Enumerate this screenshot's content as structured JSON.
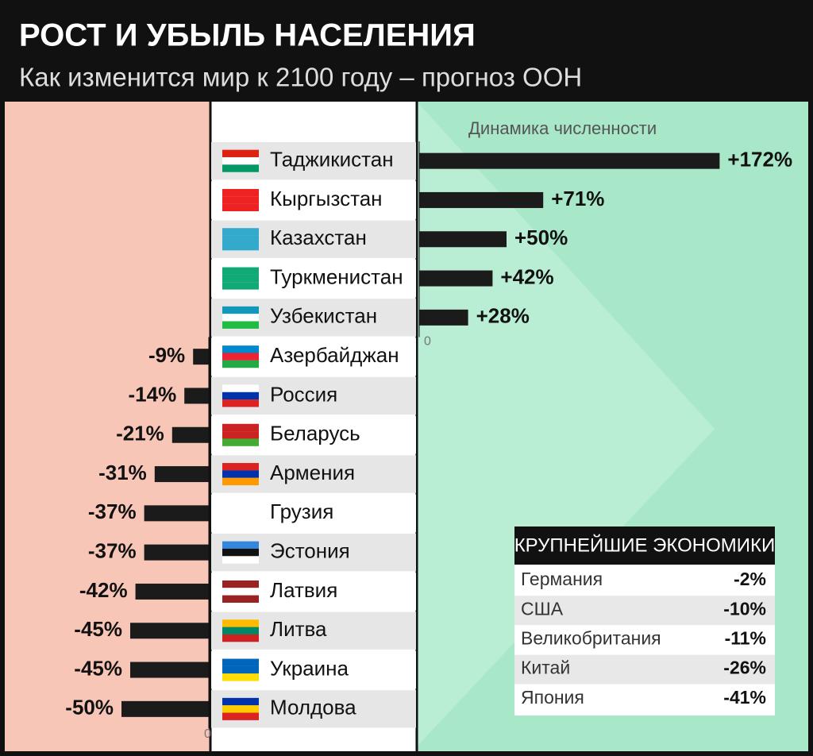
{
  "chart_data": {
    "type": "hbar",
    "title": "РОСТ И УБЫЛЬ НАСЕЛЕНИЯ",
    "subtitle": "Как изменится мир к 2100 году – прогноз ООН",
    "value_axis_label": "Динамика численности",
    "categories": [
      "Таджикистан",
      "Кыргызстан",
      "Казахстан",
      "Туркменистан",
      "Узбекистан",
      "Азербайджан",
      "Россия",
      "Беларусь",
      "Армения",
      "Грузия",
      "Эстония",
      "Латвия",
      "Литва",
      "Украина",
      "Молдова"
    ],
    "values": [
      172,
      71,
      50,
      42,
      28,
      -9,
      -14,
      -21,
      -31,
      -37,
      -37,
      -42,
      -45,
      -45,
      -50
    ],
    "value_labels": [
      "+172%",
      "+71%",
      "+50%",
      "+42%",
      "+28%",
      "-9%",
      "-14%",
      "-21%",
      "-31%",
      "-37%",
      "-37%",
      "-42%",
      "-45%",
      "-45%",
      "-50%"
    ],
    "xticks": [
      0
    ],
    "color": "#1b1b1b"
  },
  "inset_table": {
    "title": "КРУПНЕЙШИЕ ЭКОНОМИКИ",
    "rows": [
      [
        "Германия",
        "-2%"
      ],
      [
        "США",
        "-10%"
      ],
      [
        "Великобритания",
        "-11%"
      ],
      [
        "Китай",
        "-26%"
      ],
      [
        "Япония",
        "-41%"
      ]
    ]
  }
}
